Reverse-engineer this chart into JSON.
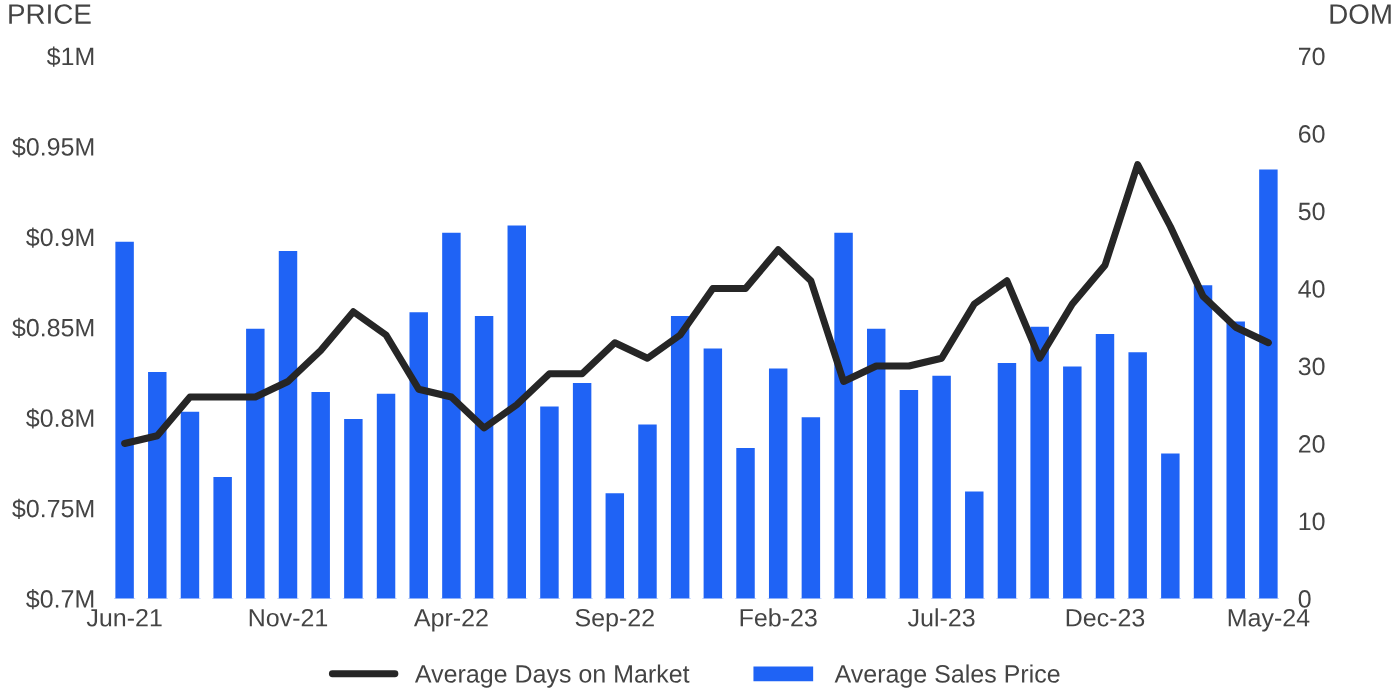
{
  "chart_data": {
    "type": "bar",
    "ylabel": "PRICE",
    "y2label": "DOM",
    "categories": [
      "Jun-21",
      null,
      null,
      null,
      null,
      "Nov-21",
      null,
      null,
      null,
      null,
      "Apr-22",
      null,
      null,
      null,
      null,
      "Sep-22",
      null,
      null,
      null,
      null,
      "Feb-23",
      null,
      null,
      null,
      null,
      "Jul-23",
      null,
      null,
      null,
      null,
      "Dec-23",
      null,
      null,
      null,
      null,
      "May-24"
    ],
    "series": [
      {
        "name": "Average Days on Market",
        "type": "line",
        "axis": "y2",
        "color": "#262626",
        "values": [
          20,
          21,
          26,
          26,
          26,
          28,
          32,
          37,
          34,
          27,
          26,
          22,
          25,
          29,
          29,
          33,
          31,
          34,
          40,
          40,
          45,
          41,
          28,
          30,
          30,
          31,
          38,
          41,
          31,
          38,
          43,
          56,
          48,
          39,
          35,
          33
        ]
      },
      {
        "name": "Average Sales Price",
        "color": "#1f63f5",
        "values": [
          0.898,
          0.826,
          0.804,
          0.768,
          0.85,
          0.893,
          0.815,
          0.8,
          0.814,
          0.859,
          0.903,
          0.857,
          0.907,
          0.807,
          0.82,
          0.759,
          0.797,
          0.857,
          0.839,
          0.784,
          0.828,
          0.801,
          0.903,
          0.85,
          0.816,
          0.824,
          0.76,
          0.831,
          0.851,
          0.829,
          0.847,
          0.837,
          0.781,
          0.874,
          0.854,
          0.938
        ]
      }
    ],
    "ylim": [
      0.7,
      1.0
    ],
    "yticks": [
      {
        "value": 0.7,
        "label": "$0.7M"
      },
      {
        "value": 0.75,
        "label": "$0.75M"
      },
      {
        "value": 0.8,
        "label": "$0.8M"
      },
      {
        "value": 0.85,
        "label": "$0.85M"
      },
      {
        "value": 0.9,
        "label": "$0.9M"
      },
      {
        "value": 0.95,
        "label": "$0.95M"
      },
      {
        "value": 1.0,
        "label": "$1M"
      }
    ],
    "y2lim": [
      0,
      70
    ],
    "y2ticks": [
      0,
      10,
      20,
      30,
      40,
      50,
      60,
      70
    ],
    "legend": "bottom",
    "grid": false
  }
}
